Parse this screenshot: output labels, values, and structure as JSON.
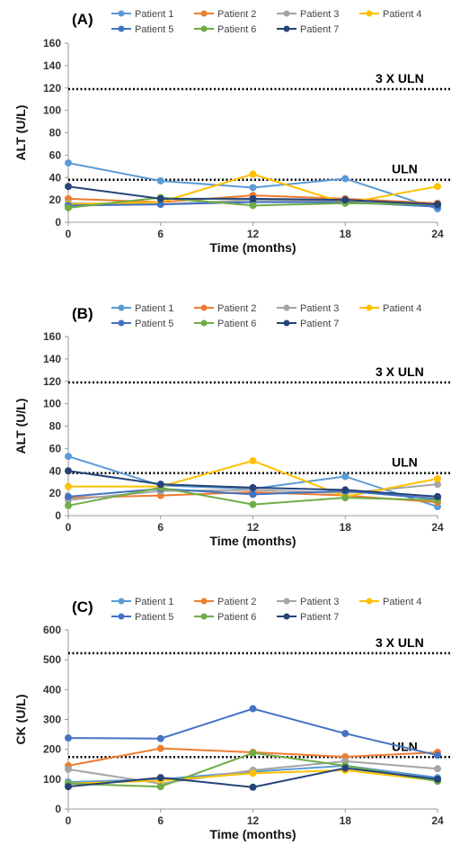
{
  "chart_data": [
    {
      "type": "line",
      "panel_label": "(A)",
      "xlabel": "Time (months)",
      "ylabel": "ALT (U/L)",
      "x": [
        0,
        6,
        12,
        18,
        24
      ],
      "ylim": [
        0,
        160
      ],
      "yticks": [
        0,
        20,
        40,
        60,
        80,
        100,
        120,
        140,
        160
      ],
      "grid": false,
      "legend_position": "top",
      "reference_lines": [
        {
          "label": "3 X ULN",
          "value": 119,
          "style": "dotted"
        },
        {
          "label": "ULN",
          "value": 38,
          "style": "dotted"
        }
      ],
      "series": [
        {
          "name": "Patient 1",
          "color": "#5b9bd5",
          "values": [
            53,
            37,
            31,
            39,
            12
          ]
        },
        {
          "name": "Patient 2",
          "color": "#ed7d31",
          "values": [
            21,
            18,
            24,
            21,
            17
          ]
        },
        {
          "name": "Patient 3",
          "color": "#a5a5a5",
          "values": [
            17,
            16,
            20,
            19,
            15
          ]
        },
        {
          "name": "Patient 4",
          "color": "#ffc000",
          "values": [
            16,
            18,
            43,
            17,
            32
          ]
        },
        {
          "name": "Patient 5",
          "color": "#4472c4",
          "values": [
            15,
            16,
            18,
            18,
            14
          ]
        },
        {
          "name": "Patient 6",
          "color": "#70ad47",
          "values": [
            13,
            22,
            15,
            17,
            16
          ]
        },
        {
          "name": "Patient 7",
          "color": "#264478",
          "values": [
            32,
            21,
            21,
            20,
            16
          ]
        }
      ]
    },
    {
      "type": "line",
      "panel_label": "(B)",
      "xlabel": "Time (months)",
      "ylabel": "ALT (U/L)",
      "x": [
        0,
        6,
        12,
        18,
        24
      ],
      "ylim": [
        0,
        160
      ],
      "yticks": [
        0,
        20,
        40,
        60,
        80,
        100,
        120,
        140,
        160
      ],
      "grid": false,
      "legend_position": "top",
      "reference_lines": [
        {
          "label": "3 X ULN",
          "value": 119,
          "style": "dotted"
        },
        {
          "label": "ULN",
          "value": 38,
          "style": "dotted"
        }
      ],
      "series": [
        {
          "name": "Patient 1",
          "color": "#5b9bd5",
          "values": [
            53,
            27,
            24,
            35,
            8
          ]
        },
        {
          "name": "Patient 2",
          "color": "#ed7d31",
          "values": [
            16,
            18,
            21,
            18,
            12
          ]
        },
        {
          "name": "Patient 3",
          "color": "#a5a5a5",
          "values": [
            14,
            22,
            23,
            20,
            28
          ]
        },
        {
          "name": "Patient 4",
          "color": "#ffc000",
          "values": [
            26,
            26,
            49,
            17,
            33
          ]
        },
        {
          "name": "Patient 5",
          "color": "#4472c4",
          "values": [
            17,
            24,
            19,
            22,
            15
          ]
        },
        {
          "name": "Patient 6",
          "color": "#70ad47",
          "values": [
            9,
            25,
            10,
            16,
            14
          ]
        },
        {
          "name": "Patient 7",
          "color": "#264478",
          "values": [
            40,
            28,
            25,
            23,
            17
          ]
        }
      ]
    },
    {
      "type": "line",
      "panel_label": "(C)",
      "xlabel": "Time (months)",
      "ylabel": "CK (U/L)",
      "x": [
        0,
        6,
        12,
        18,
        24
      ],
      "ylim": [
        0,
        600
      ],
      "yticks": [
        0,
        100,
        200,
        300,
        400,
        500,
        600
      ],
      "grid": false,
      "legend_position": "top",
      "reference_lines": [
        {
          "label": "3 X ULN",
          "value": 522,
          "style": "dotted"
        },
        {
          "label": "ULN",
          "value": 174,
          "style": "dotted"
        }
      ],
      "series": [
        {
          "name": "Patient 1",
          "color": "#5b9bd5",
          "values": [
            90,
            100,
            125,
            145,
            105
          ]
        },
        {
          "name": "Patient 2",
          "color": "#ed7d31",
          "values": [
            145,
            203,
            190,
            175,
            190
          ]
        },
        {
          "name": "Patient 3",
          "color": "#a5a5a5",
          "values": [
            133,
            85,
            130,
            160,
            135
          ]
        },
        {
          "name": "Patient 4",
          "color": "#ffc000",
          "values": [
            85,
            95,
            120,
            130,
            95
          ]
        },
        {
          "name": "Patient 5",
          "color": "#4472c4",
          "values": [
            238,
            236,
            336,
            253,
            180
          ]
        },
        {
          "name": "Patient 6",
          "color": "#70ad47",
          "values": [
            85,
            75,
            188,
            145,
            93
          ]
        },
        {
          "name": "Patient 7",
          "color": "#264478",
          "values": [
            75,
            105,
            73,
            137,
            100
          ]
        }
      ]
    }
  ]
}
